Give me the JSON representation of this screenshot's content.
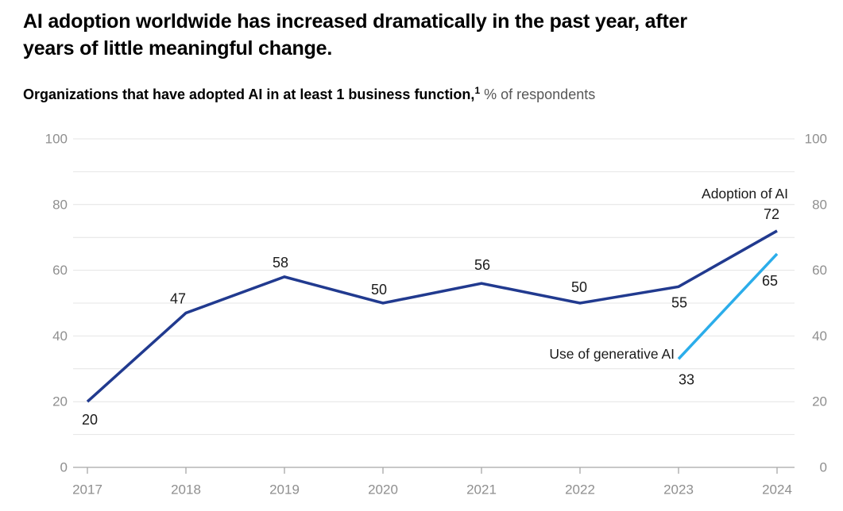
{
  "header": {
    "title_lines": [
      "AI adoption worldwide has increased dramatically in the past year, after",
      "years of little meaningful change."
    ],
    "subtitle_bold": "Organizations that have adopted AI in at least 1 business function,",
    "footnote_marker": "1",
    "subtitle_units": "% of respondents"
  },
  "colors": {
    "adoption_line": "#213a8f",
    "genai_line": "#2badea",
    "axis_text": "#8f8f8f",
    "grid_line": "#e4e4e4",
    "axis_line": "#a8a8a8",
    "data_label": "#1a1a1a",
    "background": "#ffffff"
  },
  "chart_data": {
    "type": "line",
    "x": [
      2017,
      2018,
      2019,
      2020,
      2021,
      2022,
      2023,
      2024
    ],
    "series": [
      {
        "name": "Adoption of AI",
        "x": [
          2017,
          2018,
          2019,
          2020,
          2021,
          2022,
          2023,
          2024
        ],
        "values": [
          20,
          47,
          58,
          50,
          56,
          50,
          55,
          72
        ],
        "color": "#213a8f"
      },
      {
        "name": "Use of generative AI",
        "x": [
          2023,
          2024
        ],
        "values": [
          33,
          65
        ],
        "color": "#2badea"
      }
    ],
    "ylim": [
      0,
      100
    ],
    "grid_step": 10,
    "axis_label_step": 20,
    "y_tick_labels": [
      0,
      20,
      40,
      60,
      80,
      100
    ],
    "grid": true,
    "y_axis_labels_both_sides": true,
    "legend_position": "inline labels at line ends",
    "point_labels_visible": true,
    "xlabel": "",
    "ylabel": ""
  }
}
